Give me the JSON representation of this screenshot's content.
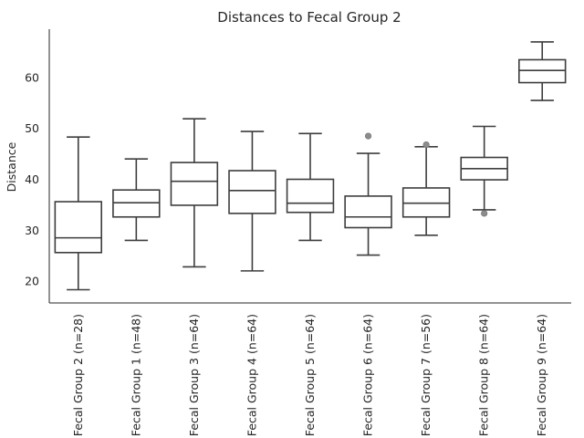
{
  "chart_data": {
    "type": "box",
    "title": "Distances to Fecal Group 2",
    "xlabel": "",
    "ylabel": "Distance",
    "ylim": [
      15.7,
      69.5
    ],
    "yticks": [
      20,
      30,
      40,
      50,
      60
    ],
    "grid": false,
    "colors": {
      "box_face": "#ffffff",
      "box_edge": "#3d3d3d",
      "outlier": "#8c8c8c",
      "axis": "#262626"
    },
    "categories": [
      "Fecal Group 2 (n=28)",
      "Fecal Group 1 (n=48)",
      "Fecal Group 3 (n=64)",
      "Fecal Group 4 (n=64)",
      "Fecal Group 5 (n=64)",
      "Fecal Group 6 (n=64)",
      "Fecal Group 7 (n=56)",
      "Fecal Group 8 (n=64)",
      "Fecal Group 9 (n=64)"
    ],
    "boxes": [
      {
        "whislo": 18.3,
        "q1": 25.6,
        "med": 28.5,
        "q3": 35.6,
        "whishi": 48.3,
        "fliers": []
      },
      {
        "whislo": 28.0,
        "q1": 32.6,
        "med": 35.4,
        "q3": 37.9,
        "whishi": 44.0,
        "fliers": []
      },
      {
        "whislo": 22.8,
        "q1": 34.9,
        "med": 39.6,
        "q3": 43.3,
        "whishi": 51.9,
        "fliers": []
      },
      {
        "whislo": 22.0,
        "q1": 33.3,
        "med": 37.8,
        "q3": 41.7,
        "whishi": 49.4,
        "fliers": []
      },
      {
        "whislo": 28.0,
        "q1": 33.5,
        "med": 35.3,
        "q3": 40.0,
        "whishi": 49.0,
        "fliers": []
      },
      {
        "whislo": 25.1,
        "q1": 30.5,
        "med": 32.6,
        "q3": 36.7,
        "whishi": 45.1,
        "fliers": [
          48.5
        ]
      },
      {
        "whislo": 29.0,
        "q1": 32.6,
        "med": 35.3,
        "q3": 38.3,
        "whishi": 46.4,
        "fliers": [
          46.8
        ]
      },
      {
        "whislo": 34.0,
        "q1": 39.9,
        "med": 42.1,
        "q3": 44.3,
        "whishi": 50.4,
        "fliers": [
          33.3
        ]
      },
      {
        "whislo": 55.5,
        "q1": 59.0,
        "med": 61.4,
        "q3": 63.5,
        "whishi": 67.0,
        "fliers": []
      }
    ]
  }
}
